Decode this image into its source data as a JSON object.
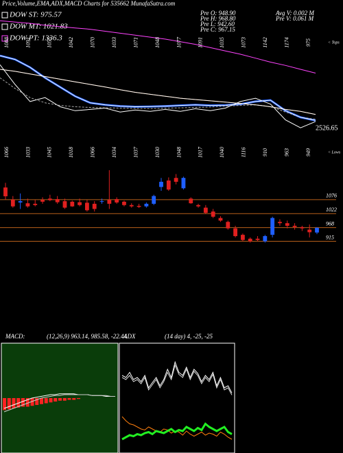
{
  "header": {
    "title": "Price,Volume,EMA,ADX,MACD Charts for 535662  MunafaSutra.com"
  },
  "chart_data": [
    {
      "type": "line",
      "ylim": [
        900,
        1830
      ],
      "annotations": [
        "Pre  O: 948.90",
        "Pre  H: 968.80",
        "Pre  L: 942.60",
        "Pre  C: 967.15",
        "Avg V: 0.002  M",
        "Pre  V: 0.061  M"
      ],
      "price_label": 2526.65,
      "tops": {
        "label": "< Tops",
        "values": [
          1088,
          1091,
          1055,
          1042,
          1070,
          1033,
          1071,
          1048,
          1077,
          1091,
          1035,
          1073,
          1142,
          1174,
          975
        ]
      },
      "lows": {
        "label": "< Lows",
        "values": [
          1066,
          1033,
          1045,
          1018,
          1066,
          1034,
          1037,
          1030,
          1048,
          1017,
          1040,
          1116,
          910,
          963,
          949
        ]
      },
      "series": [
        {
          "name": "DOW ST: 975.57",
          "color": "#ffffff",
          "values": [
            1469,
            1440,
            1380,
            1300,
            1230,
            1160,
            1110,
            1095,
            1085,
            1080,
            1082,
            1085,
            1090,
            1095,
            1090,
            1092,
            1100,
            1120,
            1130,
            1050,
            1000,
            975.57
          ]
        },
        {
          "name": "DOW MT: 1021.83",
          "color": "#ffffff",
          "values": [
            1365,
            1350,
            1330,
            1310,
            1290,
            1270,
            1250,
            1230,
            1210,
            1190,
            1175,
            1160,
            1145,
            1135,
            1125,
            1115,
            1105,
            1095,
            1080,
            1060,
            1045,
            1021.83
          ]
        },
        {
          "name": "DOW PT: 1336.3",
          "color": "#ff44ff",
          "values": [
            1735,
            1725,
            1715,
            1700,
            1690,
            1680,
            1670,
            1655,
            1640,
            1625,
            1610,
            1595,
            1575,
            1555,
            1530,
            1505,
            1480,
            1450,
            1420,
            1395,
            1365,
            1336.3
          ]
        }
      ],
      "lines": [
        {
          "color": "#1f5fff",
          "width": 3,
          "values": [
            1469,
            1440,
            1380,
            1300,
            1230,
            1160,
            1110,
            1095,
            1085,
            1080,
            1082,
            1085,
            1090,
            1095,
            1090,
            1092,
            1100,
            1120,
            1130,
            1050,
            1000,
            975.57
          ]
        },
        {
          "color": "#b8601a",
          "width": 1,
          "values": [
            1365,
            1350,
            1330,
            1310,
            1290,
            1270,
            1250,
            1230,
            1210,
            1190,
            1175,
            1160,
            1145,
            1135,
            1125,
            1115,
            1105,
            1095,
            1080,
            1060,
            1045,
            1021.83
          ]
        },
        {
          "color": "#ffffff",
          "width": 1,
          "values": [
            1400,
            1250,
            1120,
            1150,
            1080,
            1050,
            1060,
            1070,
            1040,
            1055,
            1045,
            1060,
            1045,
            1065,
            1050,
            1070,
            1120,
            1145,
            1100,
            980,
            920,
            967.15
          ]
        },
        {
          "color": "#aaaaaa",
          "width": 1,
          "dash": true,
          "values": [
            1300,
            1220,
            1150,
            1110,
            1090,
            1080,
            1075,
            1072,
            1070,
            1068,
            1066,
            1070,
            1072,
            1075,
            1078,
            1085,
            1090,
            1095,
            1080,
            1040,
            1000,
            985
          ]
        }
      ]
    },
    {
      "type": "candlestick",
      "ylim": [
        866,
        1211
      ],
      "yticks": [
        1076,
        1022,
        968,
        915
      ],
      "grid_color": "#b8601a",
      "up_color": "#1f5fff",
      "down_color": "#e0201f",
      "open": [
        1123,
        1076,
        1065,
        1062,
        1060,
        1075,
        1080,
        1078,
        1070,
        1068,
        1066,
        1064,
        1060,
        1068,
        1075,
        1078,
        1068,
        1055,
        1052,
        1050,
        1060,
        1125,
        1150,
        1160,
        1120,
        1080,
        1055,
        1045,
        1030,
        1005,
        990,
        965,
        940,
        925,
        925,
        915,
        940,
        990,
        985,
        975,
        970,
        960,
        948.9
      ],
      "high": [
        1141,
        1090,
        1100,
        1080,
        1075,
        1085,
        1095,
        1090,
        1080,
        1072,
        1080,
        1075,
        1070,
        1080,
        1190,
        1085,
        1072,
        1062,
        1060,
        1065,
        1095,
        1160,
        1162,
        1175,
        1165,
        1085,
        1060,
        1055,
        1040,
        1012,
        995,
        975,
        945,
        930,
        935,
        940,
        1010,
        1000,
        995,
        985,
        975,
        980,
        968.8
      ],
      "low": [
        1076,
        1045,
        1040,
        1045,
        1050,
        1060,
        1070,
        1060,
        1040,
        1048,
        1050,
        1030,
        1030,
        1060,
        1040,
        1060,
        1050,
        1045,
        1044,
        1045,
        1055,
        1110,
        1110,
        1135,
        1115,
        1060,
        1045,
        1020,
        1005,
        990,
        960,
        930,
        915,
        910,
        915,
        910,
        930,
        975,
        965,
        960,
        955,
        930,
        942.6
      ],
      "close": [
        1089,
        1050,
        1070,
        1050,
        1055,
        1068,
        1074,
        1066,
        1045,
        1050,
        1055,
        1035,
        1040,
        1070,
        1060,
        1065,
        1055,
        1050,
        1048,
        1060,
        1090,
        1145,
        1115,
        1145,
        1160,
        1062,
        1050,
        1025,
        1010,
        995,
        965,
        935,
        920,
        915,
        920,
        935,
        1005,
        985,
        975,
        970,
        965,
        950,
        967.15
      ]
    },
    {
      "type": "macd",
      "label": "MACD:",
      "subtitle": "(12,26,9) 963.14, 985.58, -22.44",
      "background": "#0a3d0a",
      "ylim": [
        -60,
        60
      ],
      "bars": {
        "color": "#ff2222",
        "values": [
          -14,
          -13,
          -12,
          -11,
          -10,
          -10,
          -9,
          -8,
          -7,
          -6,
          -5,
          -4,
          -3,
          -3,
          -2,
          -2,
          -1,
          0,
          0,
          0,
          0,
          0,
          0,
          0,
          0
        ]
      },
      "lines": [
        {
          "color": "#ffffff",
          "values": [
            -12,
            -10,
            -8,
            -6,
            -4,
            -2,
            0,
            1,
            2,
            3,
            4,
            4,
            5,
            5,
            5,
            5,
            4,
            4,
            4,
            3,
            3,
            3,
            2,
            2,
            2
          ]
        },
        {
          "color": "#cccccc",
          "values": [
            -16,
            -14,
            -12,
            -10,
            -8,
            -6,
            -4,
            -2,
            0,
            1,
            2,
            3,
            3,
            4,
            4,
            4,
            4,
            4,
            4,
            3,
            3,
            3,
            3,
            2,
            2
          ]
        }
      ]
    },
    {
      "type": "adx",
      "label": "ADX",
      "subtitle": "(14 day) 4, -25, -25",
      "background": "#000000",
      "ylim": [
        0,
        100
      ],
      "lines": [
        {
          "color": "#ffffff",
          "width": 1,
          "values": [
            72,
            70,
            75,
            68,
            70,
            66,
            72,
            60,
            65,
            70,
            62,
            68,
            78,
            70,
            85,
            75,
            72,
            80,
            70,
            78,
            74,
            66,
            72,
            68,
            75,
            62,
            70,
            60,
            62,
            55
          ]
        },
        {
          "color": "#dddddd",
          "width": 1,
          "values": [
            70,
            68,
            72,
            66,
            68,
            64,
            70,
            58,
            63,
            68,
            60,
            66,
            75,
            68,
            82,
            73,
            70,
            78,
            68,
            76,
            72,
            64,
            70,
            66,
            73,
            60,
            68,
            58,
            60,
            53
          ]
        },
        {
          "color": "#ff7f0e",
          "width": 1,
          "values": [
            32,
            28,
            25,
            24,
            22,
            20,
            19,
            22,
            20,
            18,
            17,
            20,
            19,
            16,
            18,
            17,
            14,
            18,
            15,
            13,
            15,
            17,
            14,
            16,
            15,
            13,
            17,
            15,
            12,
            10
          ]
        },
        {
          "color": "#22ee22",
          "width": 3,
          "values": [
            10,
            12,
            14,
            13,
            15,
            14,
            16,
            17,
            15,
            18,
            17,
            16,
            18,
            20,
            17,
            19,
            18,
            22,
            20,
            18,
            21,
            19,
            25,
            22,
            20,
            18,
            20,
            22,
            17,
            15
          ]
        }
      ]
    }
  ]
}
